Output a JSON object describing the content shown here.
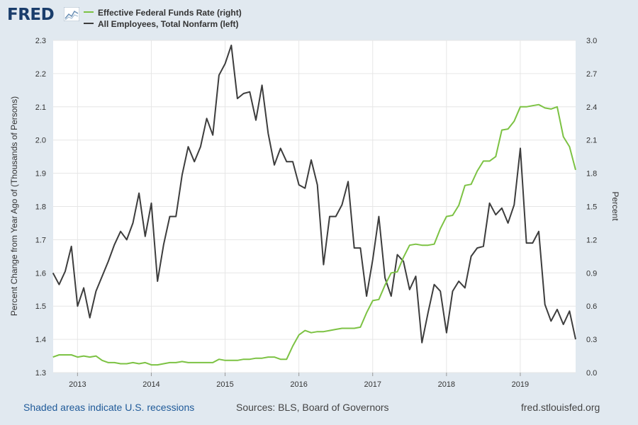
{
  "brand": {
    "logo_text": "FRED",
    "logo_icon": "chart-line-icon"
  },
  "legend": [
    {
      "label": "Effective Federal Funds Rate (right)",
      "color": "#7cc243"
    },
    {
      "label": "All Employees, Total Nonfarm (left)",
      "color": "#3d3d3d"
    }
  ],
  "footer": {
    "recession_note": "Shaded areas indicate U.S. recessions",
    "sources": "Sources: BLS, Board of Governors",
    "site": "fred.stlouisfed.org"
  },
  "chart_data": {
    "type": "line",
    "title": "",
    "xlabel": "",
    "ylabel_left": "Percent Change from Year Ago of (Thousands of Persons)",
    "ylabel_right": "Percent",
    "x_ticks": [
      "2013",
      "2014",
      "2015",
      "2016",
      "2017",
      "2018",
      "2019"
    ],
    "x_tick_values": [
      2013,
      2014,
      2015,
      2016,
      2017,
      2018,
      2019
    ],
    "xlim": [
      2012.67,
      2019.75
    ],
    "y_left": {
      "lim": [
        1.3,
        2.3
      ],
      "ticks": [
        "1.3",
        "1.4",
        "1.5",
        "1.6",
        "1.7",
        "1.8",
        "1.9",
        "2.0",
        "2.1",
        "2.2",
        "2.3"
      ]
    },
    "y_right": {
      "lim": [
        0.0,
        3.0
      ],
      "ticks": [
        "0.0",
        "0.3",
        "0.6",
        "0.9",
        "1.2",
        "1.5",
        "1.8",
        "2.1",
        "2.4",
        "2.7",
        "3.0"
      ]
    },
    "grid": true,
    "series": [
      {
        "name": "All Employees, Total Nonfarm (left)",
        "axis": "left",
        "color": "#3d3d3d",
        "x_start": 2012.667,
        "x_step": 0.0833333,
        "values": [
          1.6,
          1.565,
          1.605,
          1.68,
          1.5,
          1.555,
          1.465,
          1.545,
          1.59,
          1.635,
          1.685,
          1.725,
          1.7,
          1.75,
          1.84,
          1.71,
          1.81,
          1.575,
          1.685,
          1.77,
          1.77,
          1.895,
          1.98,
          1.935,
          1.98,
          2.065,
          2.015,
          2.195,
          2.23,
          2.285,
          2.125,
          2.14,
          2.145,
          2.06,
          2.165,
          2.02,
          1.925,
          1.975,
          1.935,
          1.935,
          1.865,
          1.855,
          1.94,
          1.865,
          1.625,
          1.77,
          1.77,
          1.805,
          1.875,
          1.675,
          1.675,
          1.53,
          1.64,
          1.77,
          1.585,
          1.53,
          1.655,
          1.635,
          1.55,
          1.59,
          1.39,
          1.48,
          1.565,
          1.545,
          1.42,
          1.545,
          1.575,
          1.555,
          1.65,
          1.675,
          1.68,
          1.81,
          1.775,
          1.795,
          1.75,
          1.805,
          1.975,
          1.69,
          1.69,
          1.725,
          1.505,
          1.455,
          1.49,
          1.445,
          1.485,
          1.4
        ]
      },
      {
        "name": "Effective Federal Funds Rate (right)",
        "axis": "right",
        "color": "#7cc243",
        "x_start": 2012.667,
        "x_step": 0.0833333,
        "values": [
          0.14,
          0.16,
          0.16,
          0.16,
          0.14,
          0.15,
          0.14,
          0.15,
          0.11,
          0.09,
          0.09,
          0.08,
          0.08,
          0.09,
          0.08,
          0.09,
          0.07,
          0.07,
          0.08,
          0.09,
          0.09,
          0.1,
          0.09,
          0.09,
          0.09,
          0.09,
          0.09,
          0.12,
          0.11,
          0.11,
          0.11,
          0.12,
          0.12,
          0.13,
          0.13,
          0.14,
          0.14,
          0.12,
          0.12,
          0.24,
          0.34,
          0.38,
          0.36,
          0.37,
          0.37,
          0.38,
          0.39,
          0.4,
          0.4,
          0.4,
          0.41,
          0.54,
          0.65,
          0.66,
          0.79,
          0.9,
          0.91,
          1.04,
          1.15,
          1.16,
          1.15,
          1.15,
          1.16,
          1.3,
          1.41,
          1.42,
          1.51,
          1.69,
          1.7,
          1.82,
          1.91,
          1.91,
          1.95,
          2.19,
          2.2,
          2.27,
          2.4,
          2.4,
          2.41,
          2.42,
          2.39,
          2.38,
          2.4,
          2.13,
          2.04,
          1.83
        ]
      }
    ]
  }
}
